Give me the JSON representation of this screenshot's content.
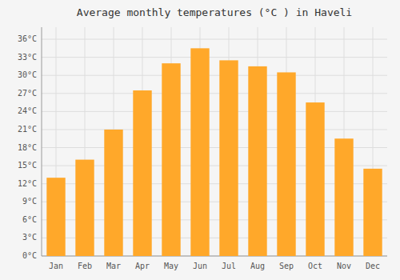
{
  "chart_data": {
    "type": "bar",
    "title": "Average monthly temperatures (°C ) in Haveli",
    "categories": [
      "Jan",
      "Feb",
      "Mar",
      "Apr",
      "May",
      "Jun",
      "Jul",
      "Aug",
      "Sep",
      "Oct",
      "Nov",
      "Dec"
    ],
    "values": [
      13,
      16,
      21,
      27.5,
      32,
      34.5,
      32.5,
      31.5,
      30.5,
      25.5,
      19.5,
      14.5
    ],
    "color": "#FFA82A",
    "ylim": [
      0,
      38
    ],
    "yticks": [
      {
        "value": 0,
        "label": "0°C"
      },
      {
        "value": 3,
        "label": "3°C"
      },
      {
        "value": 6,
        "label": "6°C"
      },
      {
        "value": 9,
        "label": "9°C"
      },
      {
        "value": 12,
        "label": "12°C"
      },
      {
        "value": 15,
        "label": "15°C"
      },
      {
        "value": 18,
        "label": "18°C"
      },
      {
        "value": 21,
        "label": "21°C"
      },
      {
        "value": 24,
        "label": "24°C"
      },
      {
        "value": 27,
        "label": "27°C"
      },
      {
        "value": 30,
        "label": "30°C"
      },
      {
        "value": 33,
        "label": "33°C"
      },
      {
        "value": 36,
        "label": "36°C"
      }
    ],
    "grid": true
  }
}
